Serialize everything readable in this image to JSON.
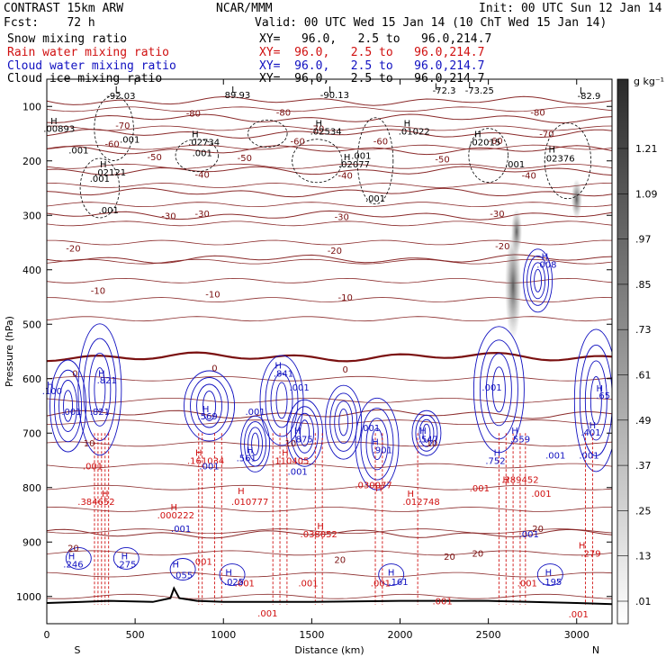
{
  "header": {
    "model": "CONTRAST 15km ARW",
    "center": "NCAR/MMM",
    "init": "Init: 00 UTC Sun 12 Jan 14",
    "fcst": "Fcst:    72 h",
    "valid": "Valid: 00 UTC Wed 15 Jan 14 (10 ChT Wed 15 Jan 14)"
  },
  "legend": [
    {
      "label": "Snow mixing ratio",
      "xy": "XY=   96.0,   2.5 to   96.0,214.7",
      "color": "#000000"
    },
    {
      "label": "Rain water mixing ratio",
      "xy": "XY=  96.0,   2.5 to   96.0,214.7",
      "color": "#d01010"
    },
    {
      "label": "Cloud water mixing ratio",
      "xy": "XY=  96.0,   2.5 to   96.0,214.7",
      "color": "#1010c0"
    },
    {
      "label": "Cloud ice mixing ratio",
      "xy": "XY=  96.0,   2.5 to   96.0,214.7",
      "color": "#000000"
    }
  ],
  "colorbar": {
    "unit": "g kg⁻¹",
    "ticks": [
      "1.21",
      "1.09",
      ".97",
      ".85",
      ".73",
      ".61",
      ".49",
      ".37",
      ".25",
      ".13",
      ".01"
    ]
  },
  "chart_data": {
    "type": "contour",
    "xlabel": "Distance (km)",
    "ylabel": "Pressure (hPa)",
    "xlim": [
      0,
      3200
    ],
    "ylim": [
      1050,
      50
    ],
    "xticks": [
      0,
      500,
      1000,
      1500,
      2000,
      2500,
      3000
    ],
    "yticks": [
      100,
      200,
      300,
      400,
      500,
      600,
      700,
      800,
      900,
      1000
    ],
    "x_end_labels": {
      "left": "S",
      "right": "N"
    },
    "temperature_isotherms": [
      {
        "t": -80,
        "p": 90
      },
      {
        "t": -70,
        "p": 122
      },
      {
        "t": -60,
        "p": 150
      },
      {
        "t": -50,
        "p": 180
      },
      {
        "t": -40,
        "p": 218
      },
      {
        "t": -30,
        "p": 258
      },
      {
        "t": -20,
        "p": 300
      },
      {
        "t": -10,
        "p": 380
      },
      {
        "t": 0,
        "p": 560
      },
      {
        "t": 10,
        "p": 665
      },
      {
        "t": 20,
        "p": 885
      }
    ],
    "temperature_labels": [
      {
        "text": "-80",
        "x": 830,
        "p": 112
      },
      {
        "text": "-80",
        "x": 1340,
        "p": 110
      },
      {
        "text": "-80",
        "x": 2780,
        "p": 110
      },
      {
        "text": "-70",
        "x": 430,
        "p": 134
      },
      {
        "text": "-70",
        "x": 1530,
        "p": 140
      },
      {
        "text": "-70",
        "x": 2830,
        "p": 150
      },
      {
        "text": "-60",
        "x": 370,
        "p": 168
      },
      {
        "text": "-60",
        "x": 1420,
        "p": 163
      },
      {
        "text": "-60",
        "x": 1890,
        "p": 163
      },
      {
        "text": "-60",
        "x": 2540,
        "p": 162
      },
      {
        "text": "-50",
        "x": 610,
        "p": 192
      },
      {
        "text": "-50",
        "x": 1120,
        "p": 194
      },
      {
        "text": "-50",
        "x": 2240,
        "p": 196
      },
      {
        "text": "-40",
        "x": 880,
        "p": 224
      },
      {
        "text": "-40",
        "x": 1690,
        "p": 226
      },
      {
        "text": "-40",
        "x": 2730,
        "p": 226
      },
      {
        "text": "-30",
        "x": 690,
        "p": 300
      },
      {
        "text": "-30",
        "x": 880,
        "p": 296
      },
      {
        "text": "-30",
        "x": 1670,
        "p": 302
      },
      {
        "text": "-30",
        "x": 2550,
        "p": 296
      },
      {
        "text": "-20",
        "x": 150,
        "p": 360
      },
      {
        "text": "-20",
        "x": 1630,
        "p": 364
      },
      {
        "text": "-20",
        "x": 2580,
        "p": 356
      },
      {
        "text": "-10",
        "x": 290,
        "p": 438
      },
      {
        "text": "-10",
        "x": 940,
        "p": 444
      },
      {
        "text": "-10",
        "x": 1690,
        "p": 450
      },
      {
        "text": "0",
        "x": 160,
        "p": 590
      },
      {
        "text": "0",
        "x": 950,
        "p": 580
      },
      {
        "text": "0",
        "x": 1690,
        "p": 582
      },
      {
        "text": "10",
        "x": 240,
        "p": 718
      },
      {
        "text": "10",
        "x": 1380,
        "p": 718
      },
      {
        "text": "10",
        "x": 2180,
        "p": 718
      },
      {
        "text": "20",
        "x": 150,
        "p": 910
      },
      {
        "text": "20",
        "x": 1660,
        "p": 932
      },
      {
        "text": "20",
        "x": 2280,
        "p": 926
      },
      {
        "text": "20",
        "x": 2440,
        "p": 920
      },
      {
        "text": "20",
        "x": 2780,
        "p": 875
      }
    ],
    "dark_labels": [
      {
        "text": "L",
        "x": 400,
        "p": 68
      },
      {
        "text": "-92.03",
        "x": 420,
        "p": 80
      },
      {
        "text": "L",
        "x": 1060,
        "p": 68
      },
      {
        "text": "89.93",
        "x": 1080,
        "p": 78
      },
      {
        "text": "L",
        "x": 1610,
        "p": 68
      },
      {
        "text": "-90.13",
        "x": 1630,
        "p": 78
      },
      {
        "text": "L",
        "x": 2210,
        "p": 62
      },
      {
        "text": "-72.3",
        "x": 2250,
        "p": 70
      },
      {
        "text": "L",
        "x": 2400,
        "p": 60
      },
      {
        "text": "-73.25",
        "x": 2450,
        "p": 70
      },
      {
        "text": "L",
        "x": 3030,
        "p": 70
      },
      {
        "text": "-82.9",
        "x": 3070,
        "p": 80
      },
      {
        "text": "H",
        "x": 40,
        "p": 126
      },
      {
        "text": ".00893",
        "x": 70,
        "p": 140
      },
      {
        "text": "H",
        "x": 840,
        "p": 150
      },
      {
        "text": ".02734",
        "x": 890,
        "p": 165
      },
      {
        "text": "H",
        "x": 1540,
        "p": 130
      },
      {
        "text": ".02534",
        "x": 1580,
        "p": 145
      },
      {
        "text": "H",
        "x": 2040,
        "p": 130
      },
      {
        "text": ".01022",
        "x": 2080,
        "p": 145
      },
      {
        "text": "H",
        "x": 2440,
        "p": 150
      },
      {
        "text": ".02015",
        "x": 2480,
        "p": 165
      },
      {
        "text": "H",
        "x": 1700,
        "p": 192
      },
      {
        "text": ".02077",
        "x": 1740,
        "p": 205
      },
      {
        "text": "H",
        "x": 2860,
        "p": 178
      },
      {
        "text": ".02376",
        "x": 2900,
        "p": 195
      },
      {
        "text": "H",
        "x": 320,
        "p": 205
      },
      {
        "text": ".02121",
        "x": 360,
        "p": 220
      },
      {
        "text": ".001",
        "x": 180,
        "p": 180
      },
      {
        "text": ".001",
        "x": 470,
        "p": 160
      },
      {
        "text": ".001",
        "x": 880,
        "p": 185
      },
      {
        "text": ".001",
        "x": 1780,
        "p": 190
      },
      {
        "text": ".001",
        "x": 1860,
        "p": 268
      },
      {
        "text": ".001",
        "x": 2650,
        "p": 205
      },
      {
        "text": ".001",
        "x": 350,
        "p": 290
      },
      {
        "text": ".001",
        "x": 300,
        "p": 232
      }
    ],
    "rain_labels": [
      {
        "text": ".001",
        "x": 260,
        "p": 760
      },
      {
        "text": "H",
        "x": 330,
        "p": 810
      },
      {
        "text": ".384652",
        "x": 280,
        "p": 825
      },
      {
        "text": "H",
        "x": 860,
        "p": 735
      },
      {
        "text": ".161034",
        "x": 900,
        "p": 750
      },
      {
        "text": "H",
        "x": 1100,
        "p": 805
      },
      {
        "text": ".010777",
        "x": 1150,
        "p": 825
      },
      {
        "text": "H",
        "x": 1350,
        "p": 735
      },
      {
        "text": ".110405",
        "x": 1380,
        "p": 750
      },
      {
        "text": "H",
        "x": 1550,
        "p": 870
      },
      {
        "text": ".038052",
        "x": 1540,
        "p": 885
      },
      {
        "text": "H",
        "x": 1880,
        "p": 800
      },
      {
        "text": ".030077",
        "x": 1850,
        "p": 795
      },
      {
        "text": "H",
        "x": 2060,
        "p": 810
      },
      {
        "text": ".012748",
        "x": 2120,
        "p": 825
      },
      {
        "text": "H",
        "x": 2600,
        "p": 785
      },
      {
        "text": ".289452",
        "x": 2680,
        "p": 785
      },
      {
        "text": "H",
        "x": 720,
        "p": 835
      },
      {
        "text": ".000222",
        "x": 730,
        "p": 850
      },
      {
        "text": "H",
        "x": 3030,
        "p": 905
      },
      {
        "text": ".279",
        "x": 3080,
        "p": 920
      },
      {
        "text": ".001",
        "x": 880,
        "p": 935
      },
      {
        "text": ".001",
        "x": 1120,
        "p": 975
      },
      {
        "text": ".001",
        "x": 1250,
        "p": 1030
      },
      {
        "text": ".001",
        "x": 1480,
        "p": 975
      },
      {
        "text": ".001",
        "x": 1890,
        "p": 975
      },
      {
        "text": ".001",
        "x": 2240,
        "p": 1008
      },
      {
        "text": ".001",
        "x": 2720,
        "p": 975
      },
      {
        "text": ".001",
        "x": 3010,
        "p": 1032
      },
      {
        "text": ".001",
        "x": 2450,
        "p": 800
      },
      {
        "text": ".001",
        "x": 2800,
        "p": 810
      }
    ],
    "cloud_labels": [
      {
        "text": "H",
        "x": 310,
        "p": 590
      },
      {
        "text": ".821",
        "x": 340,
        "p": 602
      },
      {
        "text": "H",
        "x": 20,
        "p": 610
      },
      {
        "text": ".100",
        "x": 30,
        "p": 622
      },
      {
        "text": ".001",
        "x": 140,
        "p": 660
      },
      {
        "text": ".821",
        "x": 300,
        "p": 660
      },
      {
        "text": "H",
        "x": 900,
        "p": 655
      },
      {
        "text": ".569",
        "x": 910,
        "p": 668
      },
      {
        "text": ".001",
        "x": 1180,
        "p": 660
      },
      {
        "text": "H",
        "x": 1310,
        "p": 575
      },
      {
        "text": ".841",
        "x": 1340,
        "p": 590
      },
      {
        "text": ".001",
        "x": 1430,
        "p": 615
      },
      {
        "text": "H",
        "x": 1420,
        "p": 695
      },
      {
        "text": ".875",
        "x": 1450,
        "p": 710
      },
      {
        "text": "H",
        "x": 1860,
        "p": 715
      },
      {
        "text": ".901",
        "x": 1900,
        "p": 730
      },
      {
        "text": ".001",
        "x": 1830,
        "p": 690
      },
      {
        "text": "H",
        "x": 2130,
        "p": 695
      },
      {
        "text": ".547",
        "x": 2160,
        "p": 710
      },
      {
        "text": ".001",
        "x": 2520,
        "p": 615
      },
      {
        "text": "H",
        "x": 2550,
        "p": 735
      },
      {
        "text": ".752",
        "x": 2540,
        "p": 750
      },
      {
        "text": "H",
        "x": 2650,
        "p": 695
      },
      {
        "text": ".559",
        "x": 2680,
        "p": 710
      },
      {
        "text": ".001",
        "x": 2880,
        "p": 740
      },
      {
        "text": "H",
        "x": 3090,
        "p": 685
      },
      {
        "text": ".401",
        "x": 3080,
        "p": 698
      },
      {
        "text": "H",
        "x": 3130,
        "p": 617
      },
      {
        "text": ".65",
        "x": 3150,
        "p": 630
      },
      {
        "text": ".001",
        "x": 3070,
        "p": 740
      },
      {
        "text": "H",
        "x": 1150,
        "p": 730
      },
      {
        "text": ".561",
        "x": 1130,
        "p": 745
      },
      {
        "text": ".001",
        "x": 920,
        "p": 760
      },
      {
        "text": "H",
        "x": 2820,
        "p": 375
      },
      {
        "text": ".008",
        "x": 2830,
        "p": 390
      },
      {
        "text": ".001",
        "x": 2730,
        "p": 885
      },
      {
        "text": "H",
        "x": 140,
        "p": 925
      },
      {
        "text": ".246",
        "x": 150,
        "p": 940
      },
      {
        "text": "H",
        "x": 440,
        "p": 925
      },
      {
        "text": ".275",
        "x": 450,
        "p": 940
      },
      {
        "text": "H",
        "x": 730,
        "p": 940
      },
      {
        "text": ".055",
        "x": 770,
        "p": 960
      },
      {
        "text": "H",
        "x": 1030,
        "p": 955
      },
      {
        "text": ".025",
        "x": 1060,
        "p": 972
      },
      {
        "text": "H",
        "x": 1950,
        "p": 955
      },
      {
        "text": ".161",
        "x": 1990,
        "p": 972
      },
      {
        "text": "H",
        "x": 2840,
        "p": 955
      },
      {
        "text": ".195",
        "x": 2860,
        "p": 972
      },
      {
        "text": ".001",
        "x": 1420,
        "p": 770
      },
      {
        "text": ".001",
        "x": 760,
        "p": 875
      }
    ]
  }
}
